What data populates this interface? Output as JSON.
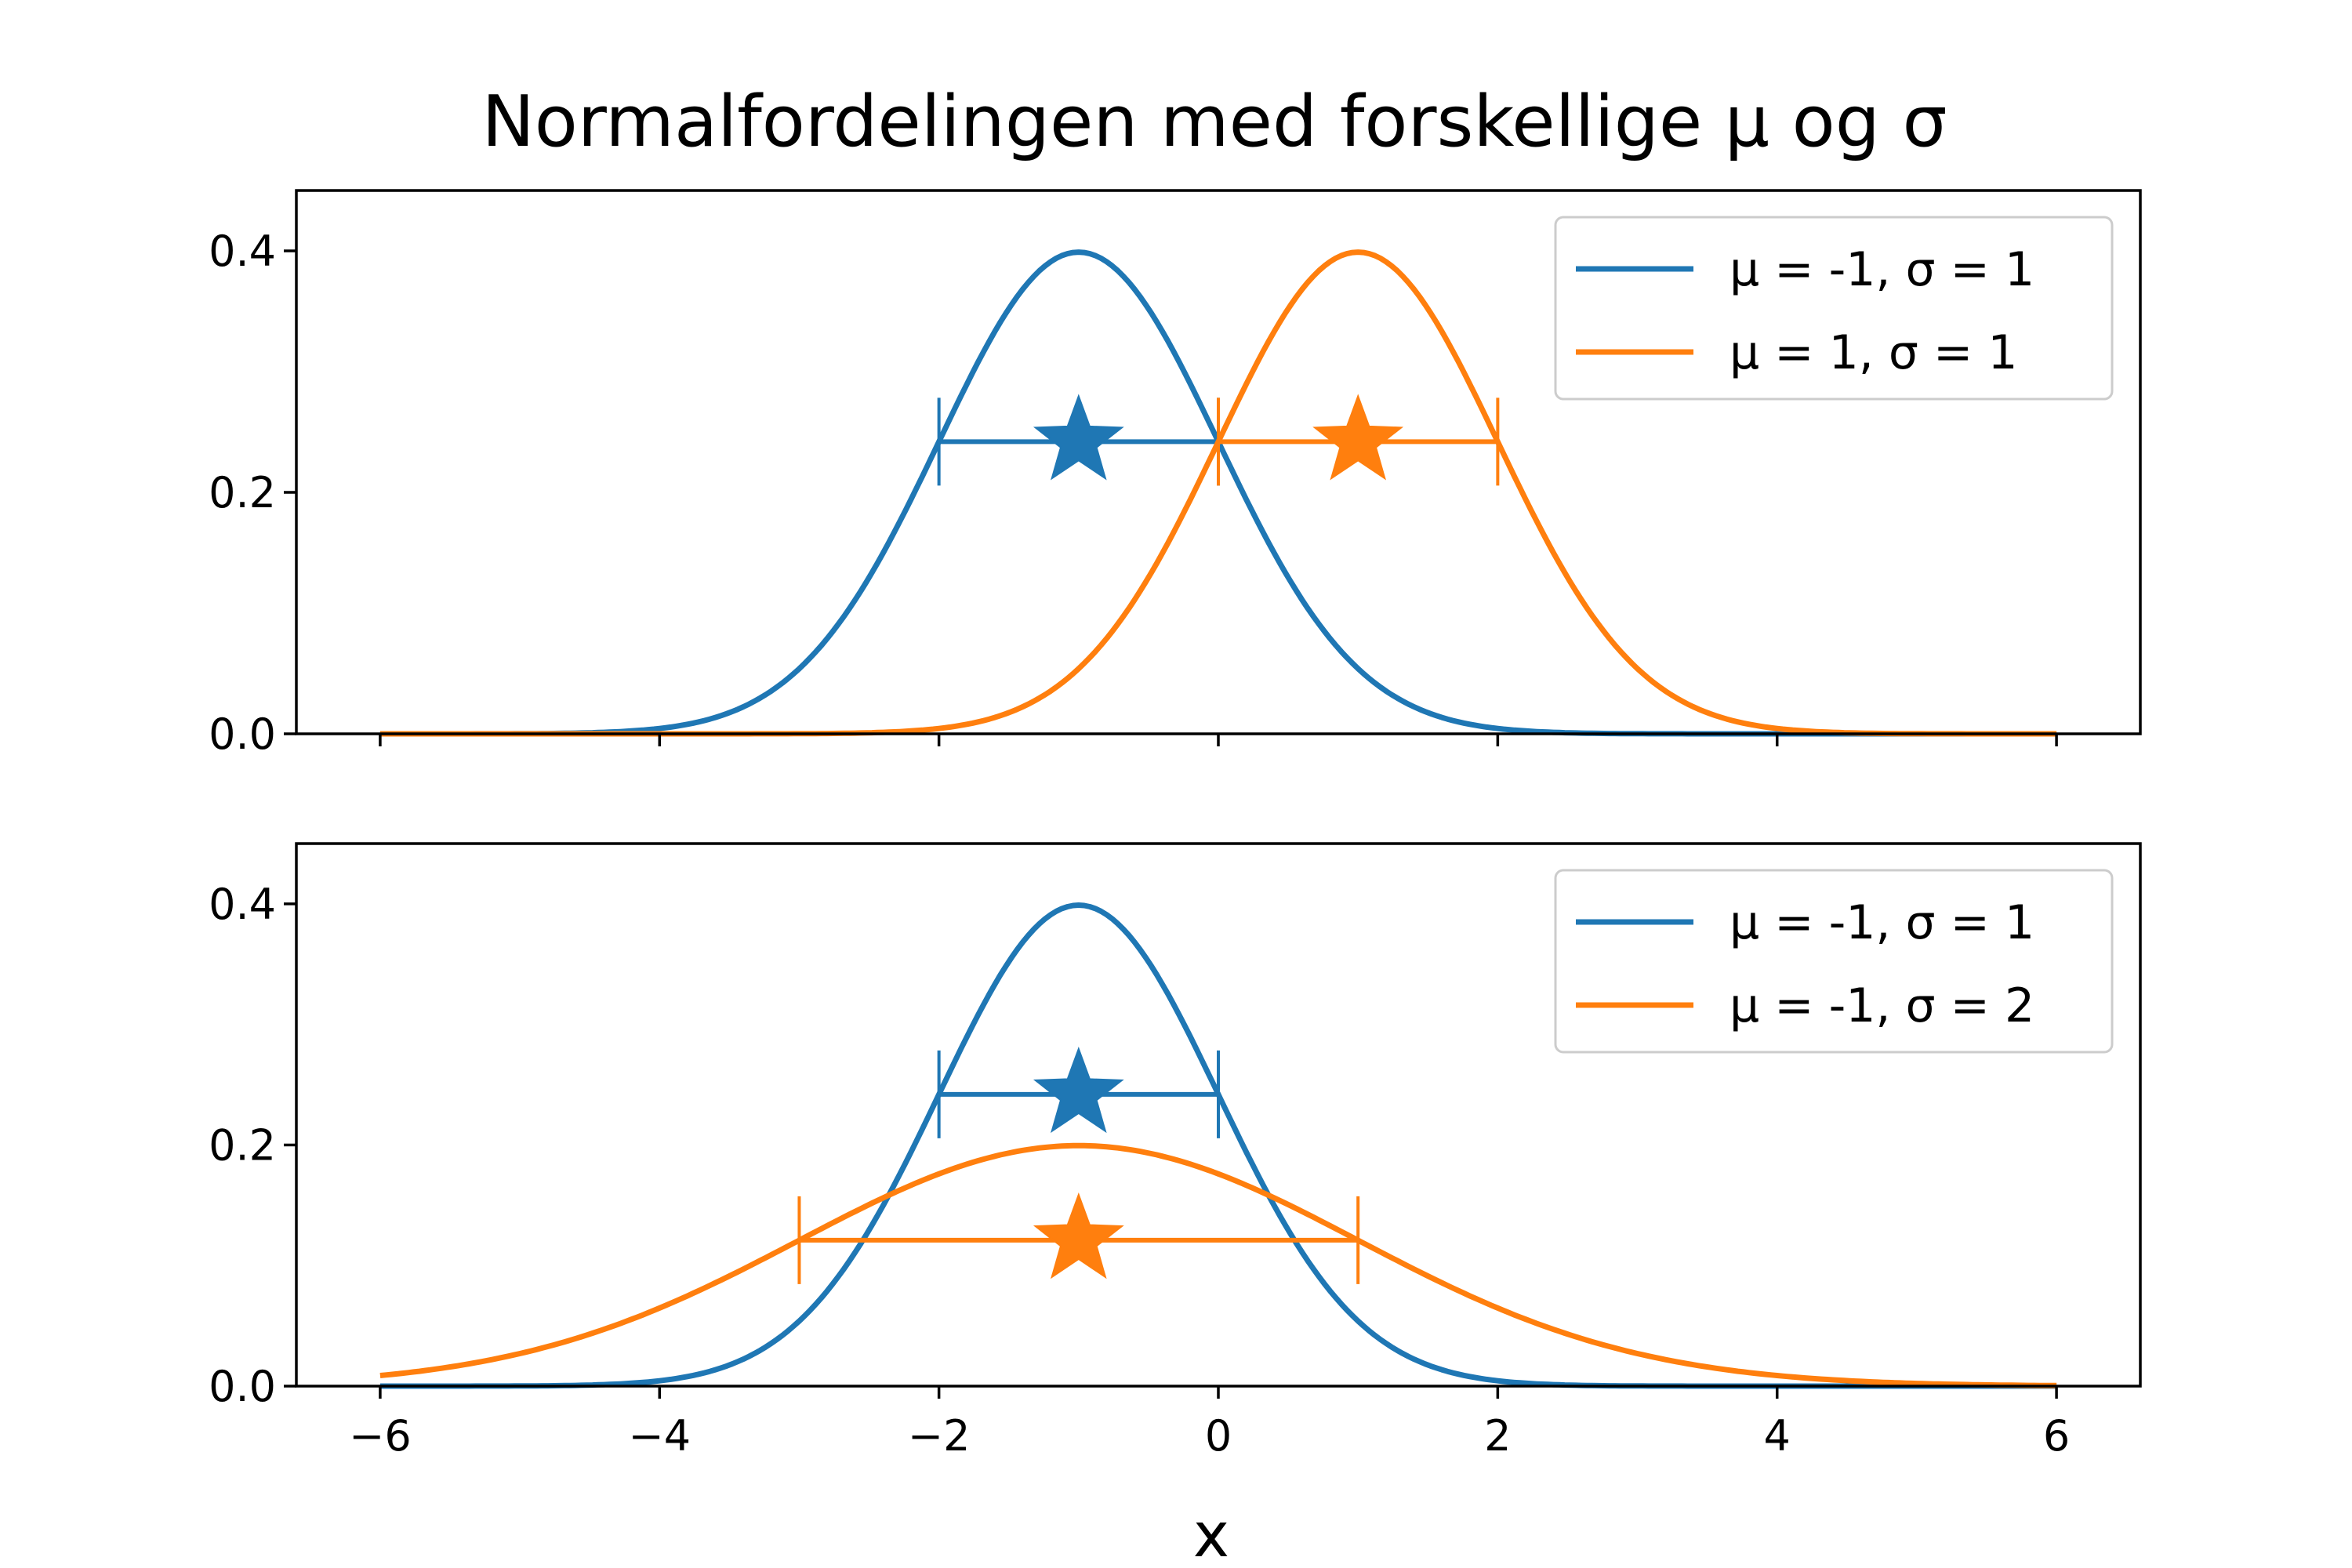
{
  "chart_data": {
    "type": "line",
    "title": "Normalfordelingen med forskellige μ og σ",
    "xlabel": "x",
    "colors": {
      "series1": "#1f77b4",
      "series2": "#ff7f0e"
    },
    "xlim": [
      -6.6,
      6.6
    ],
    "x_ticks": [
      "−6",
      "−4",
      "−2",
      "0",
      "2",
      "4",
      "6"
    ],
    "x_tick_values": [
      -6,
      -4,
      -2,
      0,
      2,
      4,
      6
    ],
    "shared_x": true,
    "subplots": [
      {
        "ylim": [
          0,
          0.45
        ],
        "y_ticks": [
          "0.0",
          "0.2",
          "0.4"
        ],
        "y_tick_values": [
          0,
          0.2,
          0.4
        ],
        "legend_position": "top-right",
        "series": [
          {
            "name": "μ = -1, σ = 1",
            "color": "#1f77b4",
            "mu": -1,
            "sigma": 1,
            "x_range": [
              -6,
              6
            ],
            "peak": 0.399,
            "marker": {
              "shape": "star",
              "x": -1,
              "y": 0.242
            },
            "errorbar": {
              "x_from": -2,
              "x_to": 0,
              "y": 0.242
            }
          },
          {
            "name": "μ = 1, σ = 1",
            "color": "#ff7f0e",
            "mu": 1,
            "sigma": 1,
            "x_range": [
              -6,
              6
            ],
            "peak": 0.399,
            "marker": {
              "shape": "star",
              "x": 1,
              "y": 0.242
            },
            "errorbar": {
              "x_from": 0,
              "x_to": 2,
              "y": 0.242
            }
          }
        ]
      },
      {
        "ylim": [
          0,
          0.45
        ],
        "y_ticks": [
          "0.0",
          "0.2",
          "0.4"
        ],
        "y_tick_values": [
          0,
          0.2,
          0.4
        ],
        "legend_position": "top-right",
        "series": [
          {
            "name": "μ = -1, σ = 1",
            "color": "#1f77b4",
            "mu": -1,
            "sigma": 1,
            "x_range": [
              -6,
              6
            ],
            "peak": 0.399,
            "marker": {
              "shape": "star",
              "x": -1,
              "y": 0.242
            },
            "errorbar": {
              "x_from": -2,
              "x_to": 0,
              "y": 0.242
            }
          },
          {
            "name": "μ = -1, σ = 2",
            "color": "#ff7f0e",
            "mu": -1,
            "sigma": 2,
            "x_range": [
              -6,
              6
            ],
            "peak": 0.199,
            "marker": {
              "shape": "star",
              "x": -1,
              "y": 0.121
            },
            "errorbar": {
              "x_from": -3,
              "x_to": 1,
              "y": 0.121
            }
          }
        ]
      }
    ]
  }
}
